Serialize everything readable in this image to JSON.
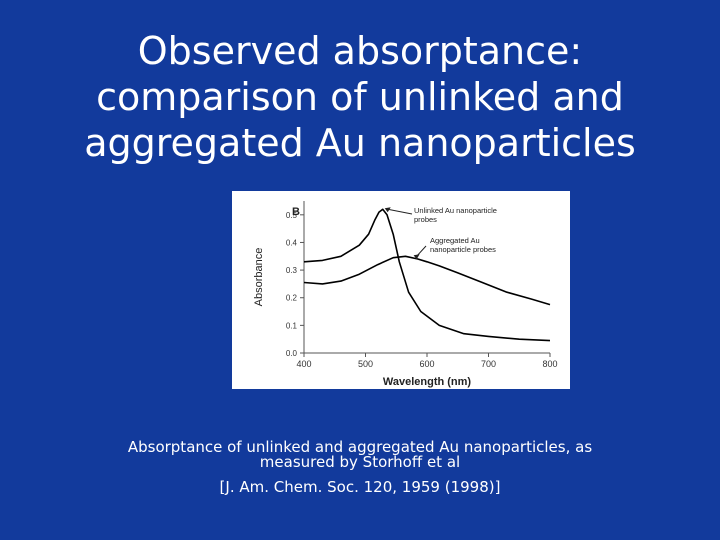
{
  "slide": {
    "title_lines": [
      "Observed absorptance:",
      "comparison of unlinked and",
      "aggregated Au nanoparticles"
    ],
    "caption_lines": [
      "Absorptance of unlinked and aggregated Au nanoparticles, as",
      "measured by Storhoff et al"
    ],
    "reference": "[J. Am. Chem. Soc. 120, 1959 (1998)]",
    "background_color": "#123a9c",
    "text_color": "#ffffff"
  },
  "chart_data": {
    "type": "line",
    "panel_label": "B",
    "xlabel": "Wavelength (nm)",
    "ylabel": "Absorbance",
    "xlim": [
      400,
      800
    ],
    "ylim": [
      0.0,
      0.55
    ],
    "xticks": [
      400,
      500,
      600,
      700,
      800
    ],
    "xtick_labels": [
      "400",
      "500",
      "600",
      "700",
      "800"
    ],
    "yticks": [
      0.0,
      0.1,
      0.2,
      0.3,
      0.4,
      0.5
    ],
    "ytick_labels": [
      "0.0",
      "0.1",
      "0.2",
      "0.3",
      "0.4",
      "0.5"
    ],
    "grid": false,
    "series": [
      {
        "name": "Unlinked Au nanoparticle probes",
        "color": "#000000",
        "x": [
          400,
          430,
          460,
          490,
          505,
          515,
          522,
          528,
          535,
          545,
          555,
          570,
          590,
          620,
          660,
          700,
          750,
          800
        ],
        "y": [
          0.33,
          0.335,
          0.35,
          0.39,
          0.43,
          0.48,
          0.51,
          0.52,
          0.5,
          0.43,
          0.33,
          0.22,
          0.15,
          0.1,
          0.07,
          0.06,
          0.05,
          0.045
        ]
      },
      {
        "name": "Aggregated Au nanoparticle probes",
        "color": "#000000",
        "x": [
          400,
          430,
          460,
          490,
          520,
          545,
          565,
          585,
          600,
          620,
          650,
          690,
          730,
          770,
          800
        ],
        "y": [
          0.255,
          0.25,
          0.26,
          0.285,
          0.32,
          0.345,
          0.35,
          0.34,
          0.33,
          0.315,
          0.29,
          0.255,
          0.22,
          0.195,
          0.175
        ]
      }
    ],
    "annotations": [
      {
        "lines": [
          "Unlinked Au nanoparticle",
          "probes"
        ],
        "target_x": 528,
        "target_y": 0.52
      },
      {
        "lines": [
          "Aggregated Au",
          "nanoparticle probes"
        ],
        "target_x": 575,
        "target_y": 0.35
      }
    ]
  }
}
